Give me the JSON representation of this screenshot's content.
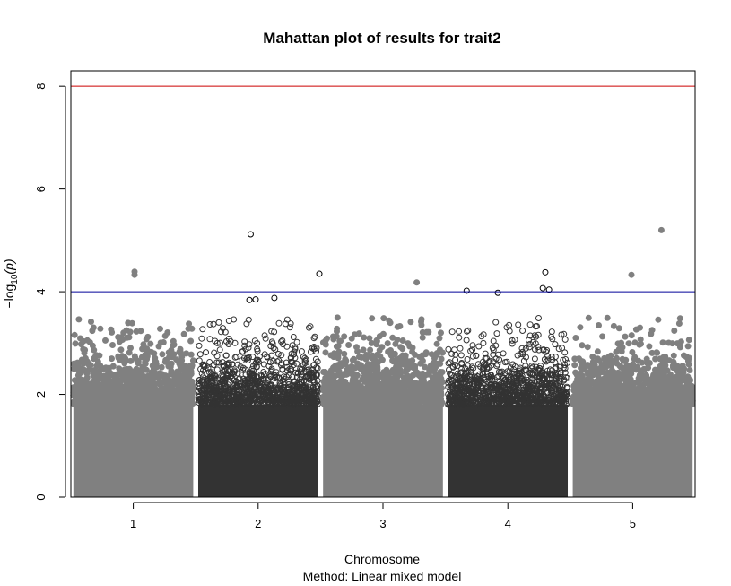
{
  "chart_data": {
    "type": "scatter",
    "title": "Mahattan plot of results for trait2",
    "xlabel": "Chromosome",
    "subtitle": "Method: Linear mixed model",
    "ylabel_base": "−log",
    "ylabel_sub": "10",
    "ylabel_arg": "(p)",
    "xlim": [
      0.5,
      5.5
    ],
    "ylim": [
      0,
      8.3
    ],
    "x_ticks": [
      1,
      2,
      3,
      4,
      5
    ],
    "x_tick_labels": [
      "1",
      "2",
      "3",
      "4",
      "5"
    ],
    "y_ticks": [
      0,
      2,
      4,
      6,
      8
    ],
    "y_tick_labels": [
      "0",
      "2",
      "4",
      "6",
      "8"
    ],
    "grid": false,
    "thresholds": [
      {
        "y": 8,
        "color": "#cc0000"
      },
      {
        "y": 4,
        "color": "#000099"
      }
    ],
    "chromosomes": [
      {
        "chrom": "1",
        "x_range": [
          0.5,
          1.5
        ],
        "color": "#808080",
        "filled": true,
        "dense_top": 1.8
      },
      {
        "chrom": "2",
        "x_range": [
          1.5,
          2.5
        ],
        "color": "#333333",
        "filled": false,
        "dense_top": 1.8
      },
      {
        "chrom": "3",
        "x_range": [
          2.5,
          3.5
        ],
        "color": "#808080",
        "filled": true,
        "dense_top": 1.8
      },
      {
        "chrom": "4",
        "x_range": [
          3.5,
          4.5
        ],
        "color": "#333333",
        "filled": false,
        "dense_top": 1.8
      },
      {
        "chrom": "5",
        "x_range": [
          4.5,
          5.5
        ],
        "color": "#808080",
        "filled": true,
        "dense_top": 1.8
      }
    ],
    "notable_points": [
      {
        "chrom": "1",
        "x": 1.01,
        "y": 4.39
      },
      {
        "chrom": "1",
        "x": 1.01,
        "y": 4.33
      },
      {
        "chrom": "2",
        "x": 1.94,
        "y": 5.12
      },
      {
        "chrom": "2",
        "x": 2.49,
        "y": 4.35
      },
      {
        "chrom": "2",
        "x": 2.13,
        "y": 3.88
      },
      {
        "chrom": "2",
        "x": 1.98,
        "y": 3.85
      },
      {
        "chrom": "2",
        "x": 1.93,
        "y": 3.84
      },
      {
        "chrom": "3",
        "x": 3.27,
        "y": 4.18
      },
      {
        "chrom": "4",
        "x": 3.67,
        "y": 4.02
      },
      {
        "chrom": "4",
        "x": 3.92,
        "y": 3.98
      },
      {
        "chrom": "4",
        "x": 4.3,
        "y": 4.38
      },
      {
        "chrom": "4",
        "x": 4.28,
        "y": 4.07
      },
      {
        "chrom": "4",
        "x": 4.33,
        "y": 4.04
      },
      {
        "chrom": "5",
        "x": 5.23,
        "y": 5.2
      },
      {
        "chrom": "5",
        "x": 4.99,
        "y": 4.33
      }
    ]
  }
}
